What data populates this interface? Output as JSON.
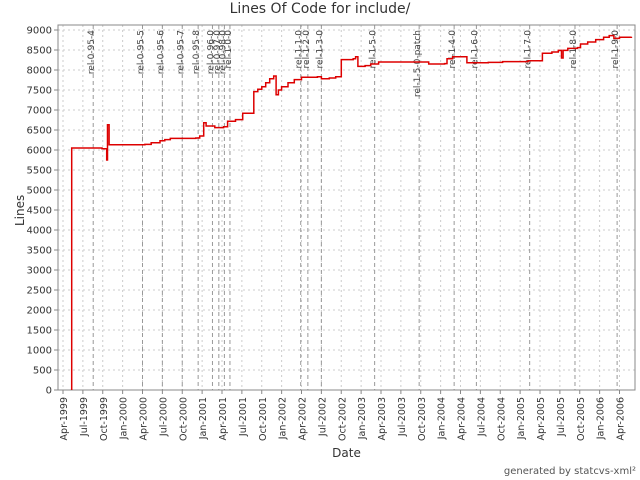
{
  "page": {
    "title": "Lines Of Code for include/",
    "footer": "generated by statcvs-xml²"
  },
  "chart_data": {
    "type": "line",
    "title": "Lines Of Code for include/",
    "xlabel": "Date",
    "ylabel": "Lines",
    "ylim": [
      0,
      9000
    ],
    "ytick_step": 500,
    "ytick_labels": [
      0,
      500,
      1000,
      1500,
      2000,
      2500,
      3000,
      3500,
      4000,
      4500,
      5000,
      5500,
      6000,
      6500,
      7000,
      7500,
      8000,
      8500,
      9000
    ],
    "xtick_start": 1999.25,
    "xtick_interval": 0.25,
    "xtick_labels": [
      "Apr-1999",
      "Jul-1999",
      "Oct-1999",
      "Jan-2000",
      "Apr-2000",
      "Jul-2000",
      "Oct-2000",
      "Jan-2001",
      "Apr-2001",
      "Jul-2001",
      "Oct-2001",
      "Jan-2002",
      "Apr-2002",
      "Jul-2002",
      "Oct-2002",
      "Jan-2003",
      "Apr-2003",
      "Jul-2003",
      "Oct-2003",
      "Jan-2004",
      "Apr-2004",
      "Jul-2004",
      "Oct-2004",
      "Jan-2005",
      "Apr-2005",
      "Jul-2005",
      "Oct-2005",
      "Jan-2006",
      "Apr-2006"
    ],
    "grid": true,
    "legend": "none",
    "series": [
      {
        "name": "lines-of-code",
        "color": "#dd0000",
        "starts_from_zero_at": 1999.36,
        "points": [
          [
            1999.36,
            6050
          ],
          [
            1999.74,
            6030
          ],
          [
            1999.8,
            5750
          ],
          [
            1999.81,
            6630
          ],
          [
            1999.83,
            6130
          ],
          [
            2000.28,
            6140
          ],
          [
            2000.36,
            6180
          ],
          [
            2000.47,
            6230
          ],
          [
            2000.53,
            6260
          ],
          [
            2000.6,
            6290
          ],
          [
            2000.92,
            6300
          ],
          [
            2000.97,
            6350
          ],
          [
            2001.02,
            6680
          ],
          [
            2001.05,
            6600
          ],
          [
            2001.16,
            6560
          ],
          [
            2001.27,
            6580
          ],
          [
            2001.32,
            6720
          ],
          [
            2001.42,
            6760
          ],
          [
            2001.51,
            6920
          ],
          [
            2001.65,
            7460
          ],
          [
            2001.7,
            7520
          ],
          [
            2001.75,
            7580
          ],
          [
            2001.8,
            7680
          ],
          [
            2001.85,
            7780
          ],
          [
            2001.9,
            7850
          ],
          [
            2001.93,
            7380
          ],
          [
            2001.96,
            7500
          ],
          [
            2002.0,
            7580
          ],
          [
            2002.08,
            7680
          ],
          [
            2002.16,
            7760
          ],
          [
            2002.25,
            7820
          ],
          [
            2002.45,
            7830
          ],
          [
            2002.5,
            7780
          ],
          [
            2002.6,
            7800
          ],
          [
            2002.68,
            7830
          ],
          [
            2002.75,
            8260
          ],
          [
            2002.9,
            8280
          ],
          [
            2002.93,
            8330
          ],
          [
            2002.96,
            8090
          ],
          [
            2003.05,
            8110
          ],
          [
            2003.12,
            8150
          ],
          [
            2003.22,
            8200
          ],
          [
            2003.8,
            8200
          ],
          [
            2003.85,
            8150
          ],
          [
            2004.05,
            8160
          ],
          [
            2004.08,
            8280
          ],
          [
            2004.15,
            8330
          ],
          [
            2004.33,
            8180
          ],
          [
            2004.6,
            8190
          ],
          [
            2004.78,
            8210
          ],
          [
            2005.1,
            8230
          ],
          [
            2005.28,
            8420
          ],
          [
            2005.4,
            8450
          ],
          [
            2005.48,
            8490
          ],
          [
            2005.52,
            8300
          ],
          [
            2005.54,
            8490
          ],
          [
            2005.6,
            8540
          ],
          [
            2005.72,
            8560
          ],
          [
            2005.76,
            8650
          ],
          [
            2005.85,
            8700
          ],
          [
            2005.95,
            8760
          ],
          [
            2006.05,
            8820
          ],
          [
            2006.12,
            8860
          ],
          [
            2006.18,
            8790
          ],
          [
            2006.25,
            8820
          ],
          [
            2006.4,
            8830
          ]
        ]
      }
    ],
    "tags": [
      {
        "label": "rel-0-95-4",
        "t": 1999.63
      },
      {
        "label": "rel-0-95-5",
        "t": 2000.25
      },
      {
        "label": "rel-0-95-6",
        "t": 2000.5
      },
      {
        "label": "rel-0-95-7",
        "t": 2000.75
      },
      {
        "label": "rel-0-95-8",
        "t": 2000.95
      },
      {
        "label": "rel-0-96-0",
        "t": 2001.13
      },
      {
        "label": "rel-0-97-0",
        "t": 2001.21
      },
      {
        "label": "rel-0-98-0",
        "t": 2001.28
      },
      {
        "label": "rel-1-0-0",
        "t": 2001.35
      },
      {
        "label": "rel-1-1-0",
        "t": 2002.24
      },
      {
        "label": "rel-1-2-0",
        "t": 2002.33
      },
      {
        "label": "rel-1-3-0",
        "t": 2002.5
      },
      {
        "label": "rel-1-5-0",
        "t": 2003.17
      },
      {
        "label": "rel-1-5-0-patch",
        "t": 2003.73
      },
      {
        "label": "rel-1-4-0",
        "t": 2004.17
      },
      {
        "label": "rel-1-6-0",
        "t": 2004.45
      },
      {
        "label": "rel-1-7-0",
        "t": 2005.12
      },
      {
        "label": "rel-1-8-0",
        "t": 2005.69
      },
      {
        "label": "rel-1-9-0",
        "t": 2006.22
      }
    ],
    "colors": {
      "line": "#dd0000",
      "grid": "#cccccc",
      "tag_line": "#999999",
      "axis": "#888888",
      "text": "#333333",
      "tag_text": "#444444"
    }
  }
}
